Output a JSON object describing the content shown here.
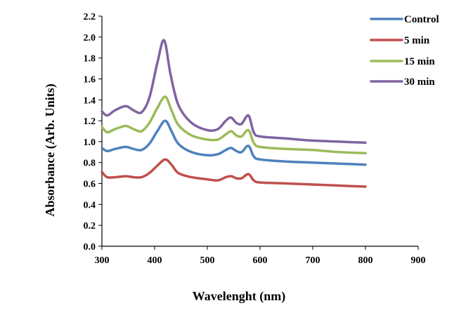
{
  "chart_data": {
    "type": "line",
    "title": "",
    "xlabel": "Wavelenght (nm)",
    "ylabel": "Absorbance (Arb. Units)",
    "xlim": [
      300,
      900
    ],
    "ylim": [
      0.0,
      2.2
    ],
    "x_ticks": [
      "300",
      "400",
      "500",
      "600",
      "700",
      "800",
      "900"
    ],
    "y_ticks": [
      "0.0",
      "0.2",
      "0.4",
      "0.6",
      "0.8",
      "1.0",
      "1.2",
      "1.4",
      "1.6",
      "1.8",
      "2.0",
      "2.2"
    ],
    "grid": false,
    "legend_position": "top-right",
    "series": [
      {
        "name": "Control",
        "color": "#4f81bd",
        "points": [
          [
            300,
            0.94
          ],
          [
            310,
            0.91
          ],
          [
            325,
            0.93
          ],
          [
            345,
            0.95
          ],
          [
            360,
            0.93
          ],
          [
            375,
            0.92
          ],
          [
            390,
            0.98
          ],
          [
            405,
            1.1
          ],
          [
            420,
            1.2
          ],
          [
            432,
            1.1
          ],
          [
            445,
            0.98
          ],
          [
            470,
            0.9
          ],
          [
            500,
            0.87
          ],
          [
            520,
            0.88
          ],
          [
            535,
            0.92
          ],
          [
            545,
            0.94
          ],
          [
            555,
            0.91
          ],
          [
            565,
            0.9
          ],
          [
            578,
            0.96
          ],
          [
            588,
            0.86
          ],
          [
            600,
            0.83
          ],
          [
            650,
            0.81
          ],
          [
            700,
            0.8
          ],
          [
            750,
            0.79
          ],
          [
            800,
            0.78
          ]
        ]
      },
      {
        "name": "5 min",
        "color": "#c0504d",
        "points": [
          [
            300,
            0.71
          ],
          [
            310,
            0.66
          ],
          [
            325,
            0.66
          ],
          [
            345,
            0.67
          ],
          [
            360,
            0.66
          ],
          [
            375,
            0.66
          ],
          [
            390,
            0.7
          ],
          [
            405,
            0.77
          ],
          [
            420,
            0.83
          ],
          [
            432,
            0.78
          ],
          [
            445,
            0.7
          ],
          [
            470,
            0.66
          ],
          [
            500,
            0.64
          ],
          [
            520,
            0.63
          ],
          [
            535,
            0.66
          ],
          [
            545,
            0.67
          ],
          [
            555,
            0.65
          ],
          [
            565,
            0.65
          ],
          [
            578,
            0.69
          ],
          [
            588,
            0.63
          ],
          [
            600,
            0.61
          ],
          [
            650,
            0.6
          ],
          [
            700,
            0.59
          ],
          [
            750,
            0.58
          ],
          [
            800,
            0.57
          ]
        ]
      },
      {
        "name": "15 min",
        "color": "#9bbb59",
        "points": [
          [
            300,
            1.14
          ],
          [
            310,
            1.09
          ],
          [
            325,
            1.12
          ],
          [
            345,
            1.15
          ],
          [
            360,
            1.12
          ],
          [
            375,
            1.1
          ],
          [
            390,
            1.18
          ],
          [
            405,
            1.32
          ],
          [
            420,
            1.43
          ],
          [
            432,
            1.3
          ],
          [
            445,
            1.16
          ],
          [
            470,
            1.06
          ],
          [
            500,
            1.02
          ],
          [
            520,
            1.02
          ],
          [
            535,
            1.07
          ],
          [
            545,
            1.1
          ],
          [
            555,
            1.06
          ],
          [
            565,
            1.05
          ],
          [
            578,
            1.11
          ],
          [
            588,
            0.99
          ],
          [
            600,
            0.95
          ],
          [
            650,
            0.93
          ],
          [
            700,
            0.92
          ],
          [
            750,
            0.9
          ],
          [
            800,
            0.89
          ]
        ]
      },
      {
        "name": "30 min",
        "color": "#8064a2",
        "points": [
          [
            300,
            1.29
          ],
          [
            310,
            1.25
          ],
          [
            325,
            1.3
          ],
          [
            345,
            1.34
          ],
          [
            360,
            1.3
          ],
          [
            375,
            1.28
          ],
          [
            390,
            1.42
          ],
          [
            405,
            1.75
          ],
          [
            418,
            1.97
          ],
          [
            430,
            1.65
          ],
          [
            445,
            1.35
          ],
          [
            470,
            1.18
          ],
          [
            500,
            1.11
          ],
          [
            520,
            1.12
          ],
          [
            535,
            1.2
          ],
          [
            545,
            1.23
          ],
          [
            555,
            1.18
          ],
          [
            565,
            1.17
          ],
          [
            578,
            1.25
          ],
          [
            588,
            1.09
          ],
          [
            600,
            1.05
          ],
          [
            650,
            1.03
          ],
          [
            700,
            1.01
          ],
          [
            750,
            1.0
          ],
          [
            800,
            0.99
          ]
        ]
      }
    ]
  }
}
